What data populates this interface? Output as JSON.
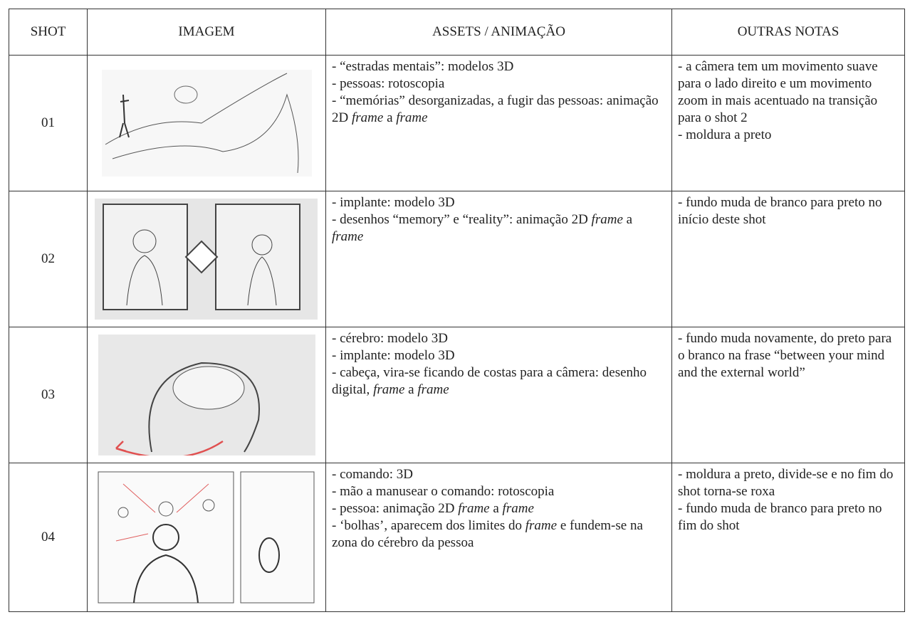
{
  "table": {
    "header": [
      "SHOT",
      "IMAGEM",
      "ASSETS / ANIMAÇÃO",
      "OUTRAS NOTAS"
    ],
    "rows": [
      {
        "shot": "01",
        "assets": [
          [
            {
              "text": "- “estradas mentais”: modelos 3D"
            }
          ],
          [
            {
              "text": "- pessoas: rotoscopia"
            }
          ],
          [
            {
              "text": "- “memórias” desorganizadas, a fugir das pessoas: animação 2D "
            },
            {
              "text": "frame",
              "italic": true
            },
            {
              "text": " a "
            },
            {
              "text": "frame",
              "italic": true
            }
          ]
        ],
        "notes": [
          [
            {
              "text": "- a câmera tem um movimento suave para o lado direito e um movimento zoom in mais acentuado na transição para o shot 2"
            }
          ],
          [
            {
              "text": "- moldura a preto"
            }
          ]
        ]
      },
      {
        "shot": "02",
        "assets": [
          [
            {
              "text": "- implante: modelo 3D"
            }
          ],
          [
            {
              "text": "- desenhos “memory” e “reality”: animação 2D "
            },
            {
              "text": "frame",
              "italic": true
            },
            {
              "text": " a "
            },
            {
              "text": "frame",
              "italic": true
            }
          ]
        ],
        "notes": [
          [
            {
              "text": "- fundo muda de branco para preto no início deste shot"
            }
          ]
        ]
      },
      {
        "shot": "03",
        "assets": [
          [
            {
              "text": "- cérebro: modelo 3D"
            }
          ],
          [
            {
              "text": "- implante: modelo 3D"
            }
          ],
          [
            {
              "text": "- cabeça, vira-se ficando de costas para a câmera: desenho digital, "
            },
            {
              "text": "frame",
              "italic": true
            },
            {
              "text": " a "
            },
            {
              "text": "frame",
              "italic": true
            }
          ]
        ],
        "notes": [
          [
            {
              "text": "- fundo muda novamente, do preto para o branco na frase “between your mind and the external world”"
            }
          ]
        ]
      },
      {
        "shot": "04",
        "assets": [
          [
            {
              "text": "- comando: 3D"
            }
          ],
          [
            {
              "text": "- mão a manusear o comando: rotoscopia"
            }
          ],
          [
            {
              "text": "- pessoa: animação 2D "
            },
            {
              "text": "frame",
              "italic": true
            },
            {
              "text": " a "
            },
            {
              "text": "frame",
              "italic": true
            }
          ],
          [
            {
              "text": "- ‘bolhas’, aparecem dos limites do "
            },
            {
              "text": "frame",
              "italic": true
            },
            {
              "text": " e fundem-se na zona do cérebro da pessoa"
            }
          ]
        ],
        "notes": [
          [
            {
              "text": "- moldura a preto, divide-se e no fim do shot torna-se roxa"
            }
          ],
          [
            {
              "text": "- fundo muda de branco para preto no fim do shot"
            }
          ]
        ]
      }
    ]
  }
}
